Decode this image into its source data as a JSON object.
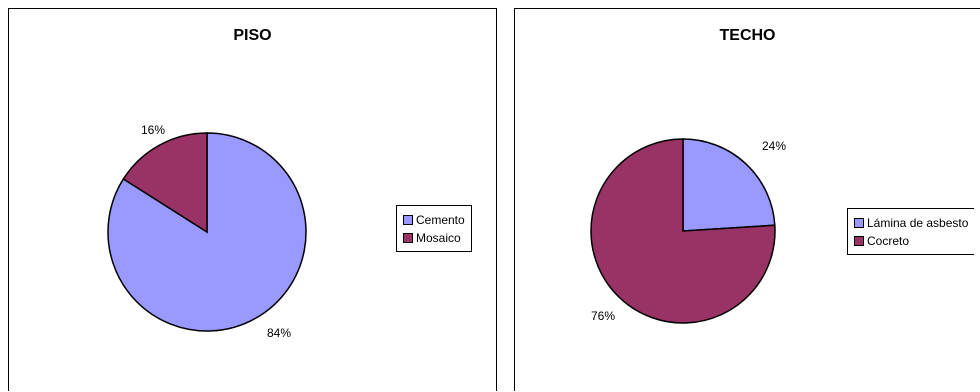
{
  "chart_data": [
    {
      "type": "pie",
      "title": "PISO",
      "categories": [
        "Cemento",
        "Mosaico"
      ],
      "values": [
        84,
        16
      ],
      "labels": [
        "84%",
        "16%"
      ],
      "colors": [
        "#9999ff",
        "#993366"
      ],
      "legend_position": "right"
    },
    {
      "type": "pie",
      "title": "TECHO",
      "categories": [
        "Lámina de asbesto",
        "Cocreto"
      ],
      "values": [
        24,
        76
      ],
      "labels": [
        "24%",
        "76%"
      ],
      "colors": [
        "#9999ff",
        "#993366"
      ],
      "legend_position": "right"
    }
  ]
}
